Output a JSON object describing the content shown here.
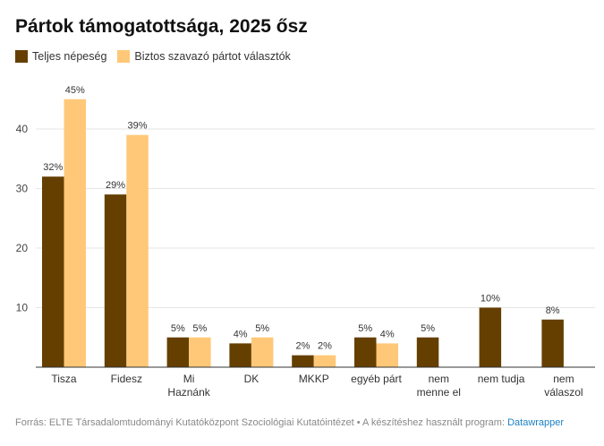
{
  "chart_data": {
    "type": "bar",
    "title": "Pártok támogatottsága, 2025 ősz",
    "categories": [
      "Tisza",
      "Fidesz",
      "Mi Hazánk",
      "DK",
      "MKKP",
      "egyéb párt",
      "nem menne el",
      "nem tudja",
      "nem válaszol"
    ],
    "category_lines": [
      [
        "Tisza"
      ],
      [
        "Fidesz"
      ],
      [
        "Mi",
        "Haznánk"
      ],
      [
        "DK"
      ],
      [
        "MKKP"
      ],
      [
        "egyéb párt"
      ],
      [
        "nem",
        "menne el"
      ],
      [
        "nem tudja"
      ],
      [
        "nem",
        "válaszol"
      ]
    ],
    "series": [
      {
        "name": "Teljes népeség",
        "color": "#653f00",
        "values": [
          32,
          29,
          5,
          4,
          2,
          5,
          5,
          10,
          8
        ]
      },
      {
        "name": "Biztos szavazó pártot választók",
        "color": "#ffc878",
        "values": [
          45,
          39,
          5,
          5,
          2,
          4,
          null,
          null,
          null
        ]
      }
    ],
    "yticks": [
      10,
      20,
      30,
      40
    ],
    "ylim": [
      0,
      50
    ],
    "xlabel": "",
    "ylabel": "",
    "legend_position": "top-left",
    "grid": true
  },
  "footer": {
    "source": "Forrás: ELTE Társadalomtudományi Kutatóközpont Szociológiai Kutatóintézet • A készítéshez használt program: ",
    "link": "Datawrapper"
  }
}
